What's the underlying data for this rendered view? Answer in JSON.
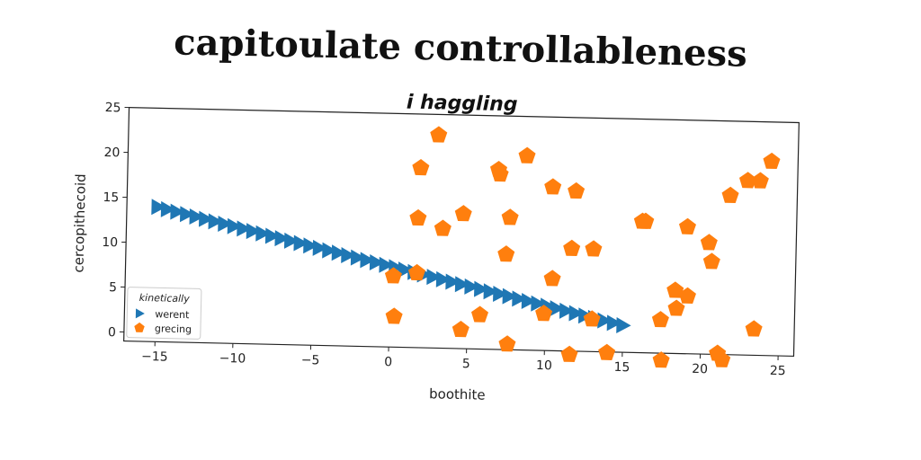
{
  "figure": {
    "title": "capitoulate controllableness"
  },
  "chart_data": {
    "type": "scatter",
    "title": "i haggling",
    "xlabel": "boothite",
    "ylabel": "cercopithecoid",
    "xlim": [
      -17,
      26
    ],
    "ylim": [
      -1,
      25
    ],
    "xticks": [
      -15,
      -10,
      -5,
      0,
      5,
      10,
      15,
      20,
      25
    ],
    "yticks": [
      0,
      5,
      10,
      15,
      20,
      25
    ],
    "legend": {
      "title": "kinetically",
      "position": "lower-left"
    },
    "colors": {
      "werent": "#1f77b4",
      "grecing": "#ff7f0e"
    },
    "series": [
      {
        "name": "werent",
        "marker": "triangle-right",
        "x": [
          -15,
          -14.39,
          -13.78,
          -13.16,
          -12.55,
          -11.94,
          -11.33,
          -10.71,
          -10.1,
          -9.49,
          -8.88,
          -8.27,
          -7.65,
          -7.04,
          -6.43,
          -5.82,
          -5.2,
          -4.59,
          -3.98,
          -3.37,
          -2.76,
          -2.14,
          -1.53,
          -0.92,
          -0.31,
          0.31,
          0.92,
          1.53,
          2.14,
          2.76,
          3.37,
          3.98,
          4.59,
          5.2,
          5.82,
          6.43,
          7.04,
          7.65,
          8.27,
          8.88,
          9.49,
          10.1,
          10.71,
          11.33,
          11.94,
          12.55,
          13.16,
          13.78,
          14.39,
          15
        ],
        "y": [
          14,
          13.76,
          13.51,
          13.27,
          13.02,
          12.78,
          12.53,
          12.29,
          12.04,
          11.8,
          11.55,
          11.31,
          11.06,
          10.82,
          10.57,
          10.33,
          10.08,
          9.84,
          9.59,
          9.35,
          9.1,
          8.86,
          8.61,
          8.37,
          8.12,
          7.88,
          7.63,
          7.39,
          7.14,
          6.9,
          6.65,
          6.41,
          6.16,
          5.92,
          5.67,
          5.43,
          5.18,
          4.94,
          4.69,
          4.45,
          4.2,
          3.96,
          3.71,
          3.47,
          3.22,
          2.98,
          2.73,
          2.49,
          2.24,
          2
        ]
      },
      {
        "name": "grecing",
        "marker": "pentagon",
        "x": [
          2.9,
          1.8,
          6.8,
          8.6,
          6.9,
          10.3,
          11.8,
          1.7,
          3.3,
          4.6,
          7.6,
          16.1,
          16.3,
          19,
          20.4,
          21.7,
          22.8,
          23.6,
          24.3,
          11.6,
          13,
          7.4,
          10.4,
          0.2,
          1.7,
          18.3,
          18.4,
          19.1,
          9.9,
          13,
          17.4,
          0.3,
          4.6,
          5.8,
          7.6,
          11.6,
          14,
          17.5,
          21.1,
          21.4,
          23.4,
          20.6
        ],
        "y": [
          22.7,
          19,
          19,
          20.6,
          18.5,
          17.2,
          16.8,
          13.4,
          12.3,
          14,
          13.7,
          13.6,
          13.6,
          13.1,
          11.4,
          16.7,
          18.4,
          18.4,
          20.6,
          10.4,
          10.4,
          9.6,
          7,
          6.9,
          7.3,
          6,
          4,
          5.4,
          3.1,
          2.6,
          2.7,
          2.4,
          1.1,
          2.8,
          -0.4,
          -1.4,
          -1.1,
          -1.8,
          -0.9,
          -1.6,
          1.9,
          9.3
        ]
      }
    ]
  }
}
